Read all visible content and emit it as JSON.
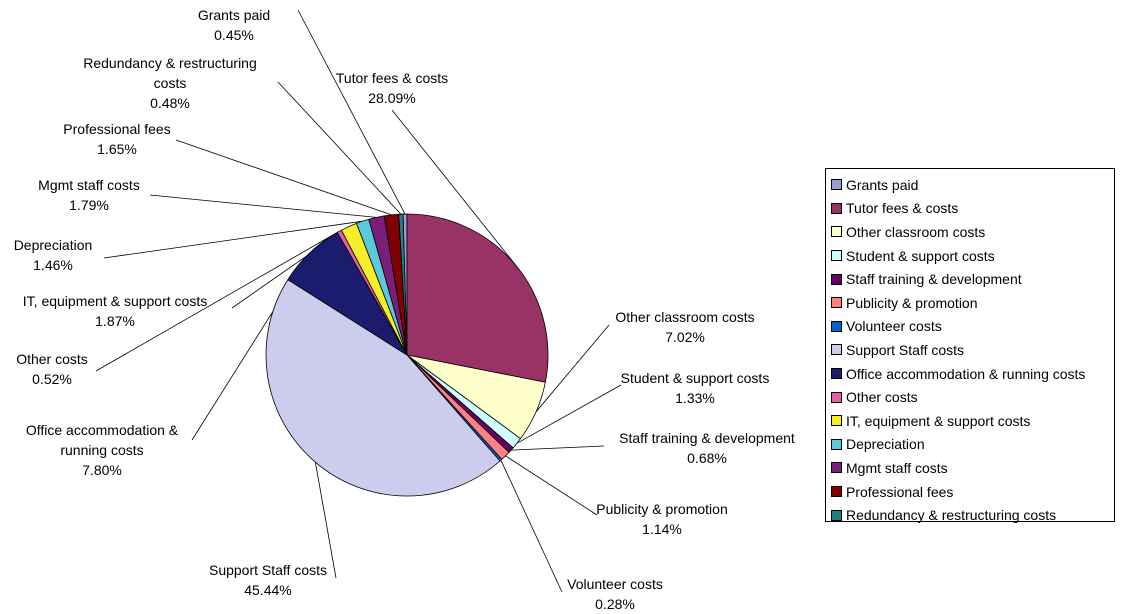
{
  "chart_data": {
    "type": "pie",
    "title": "",
    "slices": [
      {
        "name": "Grants paid",
        "value": 0.45,
        "label": "0.45%",
        "color": "#9b9bd6"
      },
      {
        "name": "Tutor fees & costs",
        "value": 28.09,
        "label": "28.09%",
        "color": "#993366"
      },
      {
        "name": "Other classroom costs",
        "value": 7.02,
        "label": "7.02%",
        "color": "#ffffcc"
      },
      {
        "name": "Student & support costs",
        "value": 1.33,
        "label": "1.33%",
        "color": "#ccffff"
      },
      {
        "name": "Staff training & development",
        "value": 0.68,
        "label": "0.68%",
        "color": "#660066"
      },
      {
        "name": "Publicity & promotion",
        "value": 1.14,
        "label": "1.14%",
        "color": "#ff8080"
      },
      {
        "name": "Volunteer costs",
        "value": 0.28,
        "label": "0.28%",
        "color": "#0066cc"
      },
      {
        "name": "Support Staff costs",
        "value": 45.44,
        "label": "45.44%",
        "color": "#ccccee"
      },
      {
        "name": "Office accommodation & running costs",
        "value": 7.8,
        "label": "7.80%",
        "color": "#1c1c6e"
      },
      {
        "name": "Other costs",
        "value": 0.52,
        "label": "0.52%",
        "color": "#e35fa8"
      },
      {
        "name": "IT, equipment & support costs",
        "value": 1.87,
        "label": "1.87%",
        "color": "#f5ef2a"
      },
      {
        "name": "Depreciation",
        "value": 1.46,
        "label": "1.46%",
        "color": "#5cc8dc"
      },
      {
        "name": "Mgmt staff costs",
        "value": 1.79,
        "label": "1.79%",
        "color": "#7a1e7a"
      },
      {
        "name": "Professional fees",
        "value": 1.65,
        "label": "1.65%",
        "color": "#7f0000"
      },
      {
        "name": "Redundancy & restructuring costs",
        "value": 0.48,
        "label": "0.48%",
        "color": "#1e8080"
      }
    ],
    "callout_names": {
      "Grants paid": [
        "Grants paid"
      ],
      "Tutor fees & costs": [
        "Tutor fees & costs"
      ],
      "Other classroom costs": [
        "Other classroom costs"
      ],
      "Student & support costs": [
        "Student & support costs"
      ],
      "Staff training & development": [
        "Staff training & development"
      ],
      "Publicity & promotion": [
        "Publicity & promotion"
      ],
      "Volunteer costs": [
        "Volunteer costs"
      ],
      "Support Staff costs": [
        "Support Staff costs"
      ],
      "Office accommodation & running costs": [
        "Office accommodation &",
        "running costs"
      ],
      "Other costs": [
        "Other costs"
      ],
      "IT, equipment & support costs": [
        "IT, equipment & support costs"
      ],
      "Depreciation": [
        "Depreciation"
      ],
      "Mgmt staff costs": [
        "Mgmt staff costs"
      ],
      "Professional fees": [
        "Professional fees"
      ],
      "Redundancy & restructuring costs": [
        "Redundancy & restructuring",
        "costs"
      ]
    },
    "legend_position": "right",
    "legend_order": [
      "Grants paid",
      "Tutor fees & costs",
      "Other classroom costs",
      "Student & support costs",
      "Staff training & development",
      "Publicity & promotion",
      "Volunteer costs",
      "Support Staff costs",
      "Office accommodation & running costs",
      "Other costs",
      "IT, equipment & support costs",
      "Depreciation",
      "Mgmt staff costs",
      "Professional fees",
      "Redundancy & restructuring costs"
    ]
  }
}
